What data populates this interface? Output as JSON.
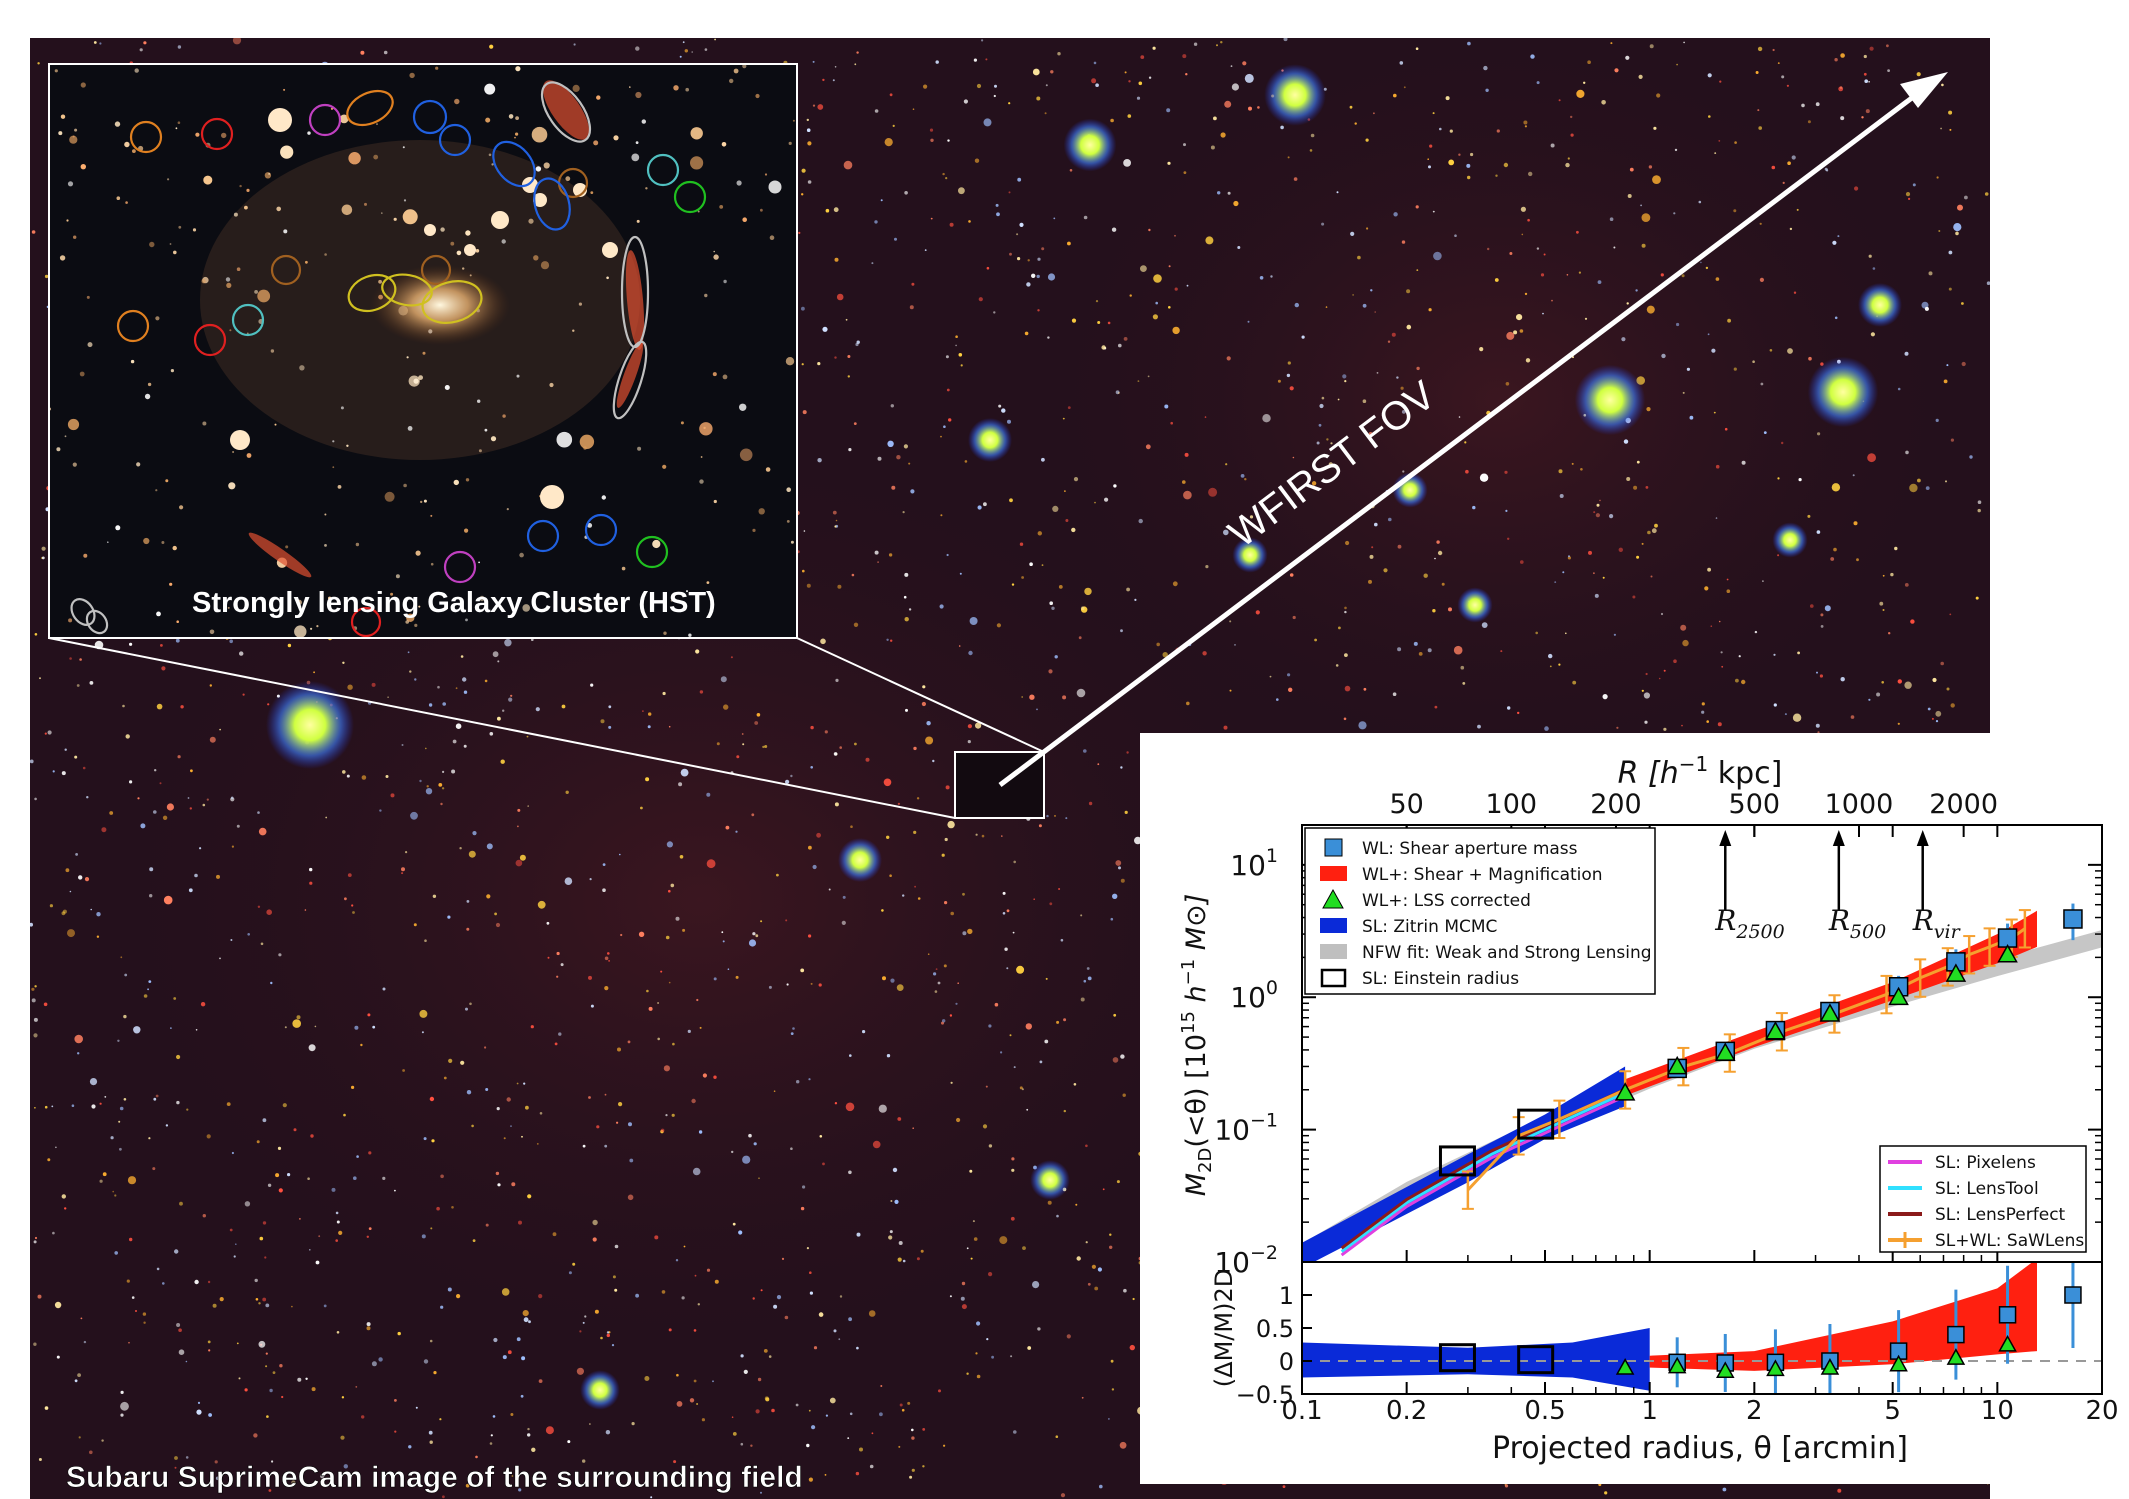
{
  "field": {
    "caption": "Subaru SuprimeCam image of the surrounding field",
    "background_color": "#24101c"
  },
  "inset": {
    "caption": "Strongly lensing Galaxy Cluster (HST)",
    "background_color": "#0b0c12"
  },
  "arrow": {
    "label": "WFIRST FOV",
    "color": "#ffffff"
  },
  "plot": {
    "top_axis_label_main": "R [h",
    "top_axis_label_sup": "−1",
    "top_axis_label_unit": " kpc]",
    "top_ticks": [
      {
        "label": "50",
        "arcmin": 0.2
      },
      {
        "label": "100",
        "arcmin": 0.4
      },
      {
        "label": "200",
        "arcmin": 0.8
      },
      {
        "label": "500",
        "arcmin": 2.0
      },
      {
        "label": "1000",
        "arcmin": 4.0
      },
      {
        "label": "2000",
        "arcmin": 8.0
      }
    ],
    "x_ticks": [
      "0.1",
      "0.2",
      "0.5",
      "1",
      "2",
      "5",
      "10",
      "20"
    ],
    "x_tick_values": [
      0.1,
      0.2,
      0.5,
      1,
      2,
      5,
      10,
      20
    ],
    "x_label_main": "Projected radius, θ [arcmin]",
    "y_ticks_top": [
      {
        "base": "10",
        "exp": "1",
        "value": 10
      },
      {
        "base": "10",
        "exp": "0",
        "value": 1
      },
      {
        "base": "10",
        "exp": "−1",
        "value": 0.1
      },
      {
        "base": "10",
        "exp": "−2",
        "value": 0.01
      }
    ],
    "y_label_top": "M2D(<θ) [10^15 h^-1 M⊙]",
    "y_label_top_parts": {
      "m": "M",
      "sub": "2D",
      "rest": "(<θ) [10",
      "sup15": "15",
      "h": " h",
      "supm1": "−1",
      "msun": " M⊙]"
    },
    "y_ticks_bottom": [
      "1",
      "0.5",
      "0",
      "−0.5"
    ],
    "y_ticks_bottom_values": [
      1,
      0.5,
      0,
      -0.5
    ],
    "y_label_bottom": "(ΔM/M)2D",
    "markers": [
      {
        "label": "R",
        "sub": "2500",
        "arcmin": 1.65
      },
      {
        "label": "R",
        "sub": "500",
        "arcmin": 3.5
      },
      {
        "label": "R",
        "sub": "vir",
        "arcmin": 6.1
      }
    ],
    "legend_main": [
      {
        "label": "WL: Shear aperture mass",
        "swatch": "square-blue"
      },
      {
        "label": "WL+: Shear + Magnification",
        "swatch": "band-red"
      },
      {
        "label": "WL+: LSS corrected",
        "swatch": "triangle-green"
      },
      {
        "label": "SL: Zitrin MCMC",
        "swatch": "band-blue"
      },
      {
        "label": "NFW fit: Weak and Strong Lensing",
        "swatch": "band-gray"
      },
      {
        "label": "SL: Einstein radius",
        "swatch": "square-open"
      }
    ],
    "legend_lines": [
      {
        "label": "SL: Pixelens",
        "color": "#e040e0"
      },
      {
        "label": "SL: LensTool",
        "color": "#30e0ff"
      },
      {
        "label": "SL: LensPerfect",
        "color": "#8b1a1a"
      },
      {
        "label": "SL+WL: SaWLens",
        "color": "#f5a030"
      }
    ],
    "colors": {
      "wl": "#3a8fd8",
      "wlplus_band": "#ff2010",
      "lss": "#22dd22",
      "sl_band": "#0a2ad8",
      "nfw": "#bfbfbf",
      "sawlens": "#f5a030"
    }
  },
  "chart_data": {
    "type": "scatter",
    "xscale": "log",
    "yscale_top": "log",
    "xlim": [
      0.1,
      20
    ],
    "ylim_top": [
      0.01,
      20
    ],
    "ylim_bottom": [
      -0.5,
      1.5
    ],
    "xlabel": "Projected radius, θ [arcmin]",
    "x2label": "R [h^-1 kpc]",
    "ylabel_top": "M2D(<θ) [10^15 h^-1 M⊙]",
    "ylabel_bottom": "(ΔM/M)2D",
    "series": [
      {
        "name": "WL: Shear aperture mass",
        "x": [
          1.2,
          1.65,
          2.3,
          3.3,
          5.2,
          7.6,
          10.7,
          16.5
        ],
        "y": [
          0.29,
          0.39,
          0.56,
          0.78,
          1.2,
          1.85,
          2.8,
          3.9
        ],
        "y_err_lo": [
          0.04,
          0.05,
          0.07,
          0.1,
          0.25,
          0.45,
          0.8,
          1.2
        ],
        "y_err_hi": [
          0.04,
          0.05,
          0.07,
          0.1,
          0.25,
          0.45,
          0.8,
          1.2
        ],
        "residual": [
          -0.02,
          -0.03,
          -0.02,
          0.0,
          0.15,
          0.4,
          0.7,
          1.0
        ]
      },
      {
        "name": "WL+: LSS corrected",
        "x": [
          0.85,
          1.2,
          1.65,
          2.3,
          3.3,
          5.2,
          7.6,
          10.7
        ],
        "y": [
          0.19,
          0.3,
          0.38,
          0.55,
          0.75,
          1.0,
          1.5,
          2.1
        ],
        "residual": [
          -0.1,
          -0.08,
          -0.15,
          -0.12,
          -0.1,
          -0.05,
          0.05,
          0.25
        ]
      },
      {
        "name": "SL: Einstein radius",
        "x": [
          0.28,
          0.47
        ],
        "y": [
          0.058,
          0.11
        ],
        "residual": [
          0.05,
          0.02
        ]
      },
      {
        "name": "SL+WL: SaWLens",
        "x": [
          0.3,
          0.42,
          0.55,
          0.85,
          1.25,
          1.7,
          2.4,
          3.4,
          4.8,
          6.0,
          7.2,
          8.3,
          9.5,
          11.0,
          12.0
        ],
        "y": [
          0.035,
          0.09,
          0.12,
          0.2,
          0.3,
          0.38,
          0.55,
          0.75,
          1.05,
          1.4,
          1.7,
          2.1,
          2.4,
          2.8,
          3.3
        ]
      },
      {
        "name": "NFW fit: Weak and Strong Lensing",
        "x": [
          0.1,
          0.2,
          0.5,
          1,
          2,
          5,
          10,
          20
        ],
        "y": [
          0.012,
          0.035,
          0.11,
          0.24,
          0.48,
          1.0,
          1.7,
          2.8
        ]
      }
    ],
    "bands": [
      {
        "name": "SL: Zitrin MCMC",
        "x": [
          0.1,
          0.3,
          0.5,
          0.85
        ],
        "y_lo": [
          0.009,
          0.04,
          0.085,
          0.15
        ],
        "y_hi": [
          0.014,
          0.065,
          0.13,
          0.3
        ]
      },
      {
        "name": "WL+: Shear + Magnification",
        "x": [
          0.85,
          2,
          5,
          10,
          13
        ],
        "y_lo": [
          0.18,
          0.42,
          0.95,
          1.8,
          2.4
        ],
        "y_hi": [
          0.24,
          0.55,
          1.3,
          3.0,
          4.5
        ]
      }
    ]
  }
}
